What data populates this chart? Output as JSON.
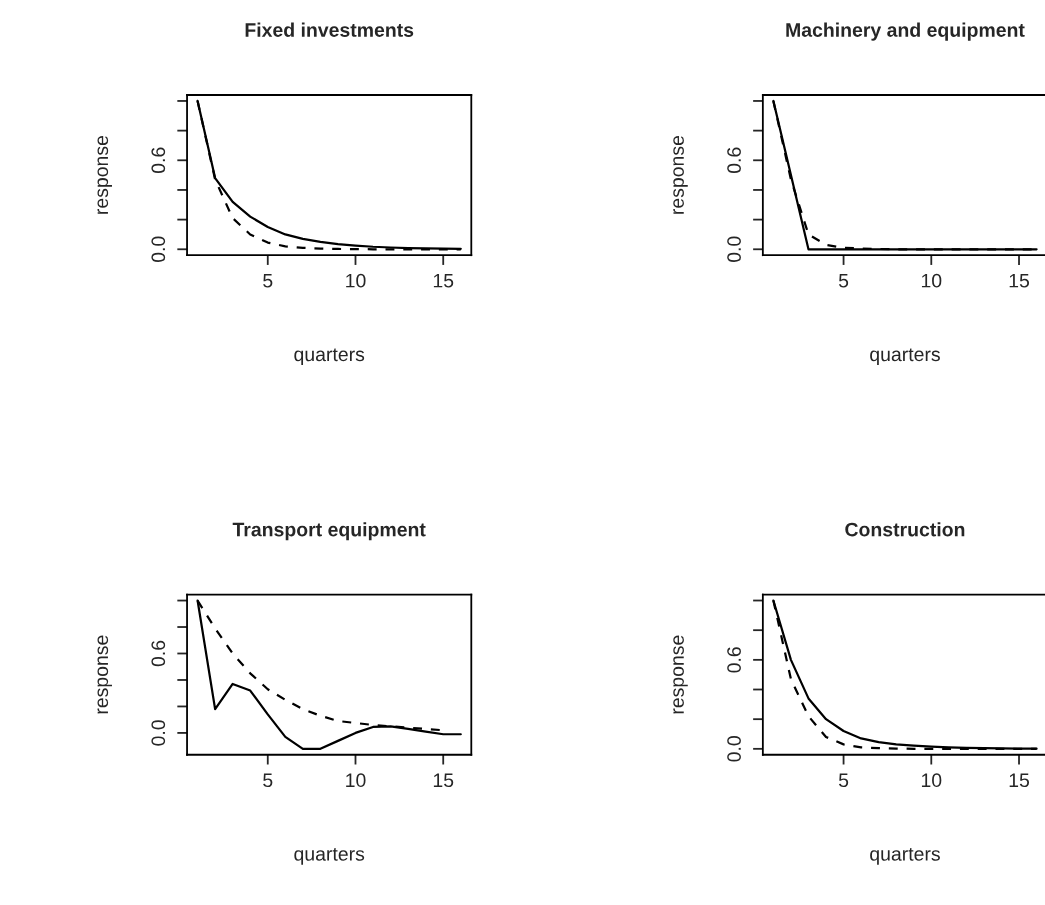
{
  "chart_data": [
    {
      "type": "line",
      "title": "Fixed investments",
      "xlabel": "quarters",
      "ylabel": "response",
      "x": [
        1,
        2,
        3,
        4,
        5,
        6,
        7,
        8,
        9,
        10,
        11,
        12,
        13,
        14,
        15,
        16
      ],
      "xlim": [
        0.4,
        16.6
      ],
      "xticks": [
        5,
        10,
        15
      ],
      "ylim": [
        -0.04,
        1.04
      ],
      "yticks": [
        {
          "value": 0.0,
          "label": "0.0"
        },
        {
          "value": 0.2,
          "label": null
        },
        {
          "value": 0.4,
          "label": null
        },
        {
          "value": 0.6,
          "label": "0.6"
        },
        {
          "value": 0.8,
          "label": null
        },
        {
          "value": 1.0,
          "label": null
        }
      ],
      "series": [
        {
          "color": "#000000",
          "line_style": "solid",
          "values": [
            1.0,
            0.48,
            0.32,
            0.22,
            0.15,
            0.1,
            0.07,
            0.05,
            0.035,
            0.025,
            0.017,
            0.012,
            0.008,
            0.006,
            0.004,
            0.003
          ]
        },
        {
          "color": "#000000",
          "line_style": "dashed",
          "values": [
            1.0,
            0.47,
            0.21,
            0.1,
            0.045,
            0.02,
            0.01,
            0.005,
            0.002,
            0.001,
            0.0,
            0.0,
            0.0,
            0.0,
            0.0,
            0.0
          ]
        }
      ]
    },
    {
      "type": "line",
      "title": "Machinery and equipment",
      "xlabel": "quarters",
      "ylabel": "response",
      "x": [
        1,
        2,
        3,
        4,
        5,
        6,
        7,
        8,
        9,
        10,
        11,
        12,
        13,
        14,
        15,
        16
      ],
      "xlim": [
        0.4,
        16.6
      ],
      "xticks": [
        5,
        10,
        15
      ],
      "ylim": [
        -0.04,
        1.04
      ],
      "yticks": [
        {
          "value": 0.0,
          "label": "0.0"
        },
        {
          "value": 0.2,
          "label": null
        },
        {
          "value": 0.4,
          "label": null
        },
        {
          "value": 0.6,
          "label": "0.6"
        },
        {
          "value": 0.8,
          "label": null
        },
        {
          "value": 1.0,
          "label": null
        }
      ],
      "series": [
        {
          "color": "#000000",
          "line_style": "solid",
          "values": [
            1.0,
            0.5,
            0.0,
            0.0,
            0.0,
            0.0,
            0.0,
            0.0,
            0.0,
            0.0,
            0.0,
            0.0,
            0.0,
            0.0,
            0.0,
            0.0
          ]
        },
        {
          "color": "#000000",
          "line_style": "dashed",
          "values": [
            1.0,
            0.47,
            0.1,
            0.03,
            0.01,
            0.005,
            0.002,
            0.0,
            0.0,
            0.0,
            0.0,
            0.0,
            0.0,
            0.0,
            0.0,
            0.0
          ]
        }
      ]
    },
    {
      "type": "line",
      "title": "Transport equipment",
      "xlabel": "quarters",
      "ylabel": "response",
      "x": [
        1,
        2,
        3,
        4,
        5,
        6,
        7,
        8,
        9,
        10,
        11,
        12,
        13,
        14,
        15,
        16
      ],
      "xlim": [
        0.4,
        16.6
      ],
      "xticks": [
        5,
        10,
        15
      ],
      "ylim": [
        -0.165,
        1.045
      ],
      "yticks": [
        {
          "value": 0.0,
          "label": "0.0"
        },
        {
          "value": 0.2,
          "label": null
        },
        {
          "value": 0.4,
          "label": null
        },
        {
          "value": 0.6,
          "label": "0.6"
        },
        {
          "value": 0.8,
          "label": null
        },
        {
          "value": 1.0,
          "label": null
        }
      ],
      "series": [
        {
          "color": "#000000",
          "line_style": "solid",
          "values": [
            1.0,
            0.18,
            0.37,
            0.32,
            0.14,
            -0.03,
            -0.12,
            -0.12,
            -0.06,
            0.0,
            0.045,
            0.05,
            0.03,
            0.01,
            -0.01,
            -0.01
          ]
        },
        {
          "color": "#000000",
          "line_style": "dashed",
          "values": [
            1.0,
            0.79,
            0.6,
            0.45,
            0.33,
            0.25,
            0.18,
            0.13,
            0.09,
            0.075,
            0.06,
            0.05,
            0.04,
            0.03,
            0.02,
            null
          ]
        }
      ]
    },
    {
      "type": "line",
      "title": "Construction",
      "xlabel": "quarters",
      "ylabel": "response",
      "x": [
        1,
        2,
        3,
        4,
        5,
        6,
        7,
        8,
        9,
        10,
        11,
        12,
        13,
        14,
        15,
        16
      ],
      "xlim": [
        0.4,
        16.6
      ],
      "xticks": [
        5,
        10,
        15
      ],
      "ylim": [
        -0.04,
        1.04
      ],
      "yticks": [
        {
          "value": 0.0,
          "label": "0.0"
        },
        {
          "value": 0.2,
          "label": null
        },
        {
          "value": 0.4,
          "label": null
        },
        {
          "value": 0.6,
          "label": "0.6"
        },
        {
          "value": 0.8,
          "label": null
        },
        {
          "value": 1.0,
          "label": null
        }
      ],
      "series": [
        {
          "color": "#000000",
          "line_style": "solid",
          "values": [
            1.0,
            0.6,
            0.34,
            0.2,
            0.12,
            0.07,
            0.045,
            0.03,
            0.022,
            0.015,
            0.01,
            0.007,
            0.005,
            0.003,
            0.002,
            0.001
          ]
        },
        {
          "color": "#000000",
          "line_style": "dashed",
          "values": [
            1.0,
            0.47,
            0.22,
            0.08,
            0.03,
            0.01,
            0.005,
            0.002,
            0.0,
            0.0,
            0.0,
            0.0,
            0.0,
            0.0,
            0.0,
            0.0
          ]
        }
      ]
    }
  ]
}
